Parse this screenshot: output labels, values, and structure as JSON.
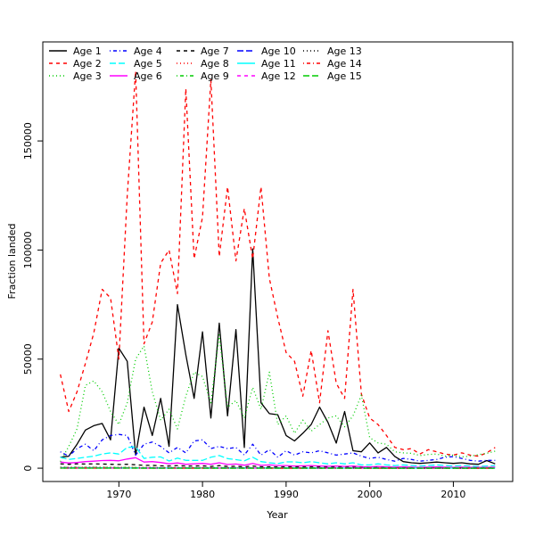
{
  "figure": {
    "background": "#ffffff",
    "plot_background": "#ffffff",
    "box_color": "#000000"
  },
  "axes": {
    "xlabel": "Year",
    "ylabel": "Fraction landed",
    "x_ticks": [
      1970,
      1980,
      1990,
      2000,
      2010
    ],
    "x_tick_labels": [
      "1970",
      "1980",
      "1990",
      "2000",
      "2010"
    ],
    "y_ticks": [
      0,
      50000,
      100000,
      150000
    ],
    "y_tick_labels": [
      "0",
      "50000",
      "100000",
      "150000"
    ],
    "xlim": [
      1960.9,
      2017.1
    ],
    "ylim": [
      -6100,
      195400
    ],
    "grid": false,
    "box": true
  },
  "chart_data": {
    "type": "line",
    "title": "",
    "xlabel": "Year",
    "ylabel": "Fraction landed",
    "legend_position": "top-left",
    "legend_columns": 5,
    "x": [
      1963,
      1964,
      1965,
      1966,
      1967,
      1968,
      1969,
      1970,
      1971,
      1972,
      1973,
      1974,
      1975,
      1976,
      1977,
      1978,
      1979,
      1980,
      1981,
      1982,
      1983,
      1984,
      1985,
      1986,
      1987,
      1988,
      1989,
      1990,
      1991,
      1992,
      1993,
      1994,
      1995,
      1996,
      1997,
      1998,
      1999,
      2000,
      2001,
      2002,
      2003,
      2004,
      2005,
      2006,
      2007,
      2008,
      2009,
      2010,
      2011,
      2012,
      2013,
      2014,
      2015
    ],
    "series": [
      {
        "name": "Age 1",
        "color": "#000000",
        "linetype": "solid",
        "values": [
          5000,
          5500,
          11000,
          17500,
          19500,
          20500,
          13000,
          55000,
          49000,
          6000,
          28000,
          15000,
          32000,
          10000,
          75000,
          52000,
          32000,
          62500,
          23000,
          66500,
          24000,
          63500,
          9500,
          100500,
          30000,
          25000,
          24500,
          15000,
          12500,
          16000,
          20000,
          28000,
          21000,
          11500,
          26000,
          8000,
          7500,
          11600,
          7000,
          9500,
          5400,
          3000,
          2500,
          2200,
          2500,
          2800,
          2500,
          2200,
          2500,
          2000,
          1800,
          3500,
          2000
        ]
      },
      {
        "name": "Age 2",
        "color": "#ff0000",
        "linetype": "dashed",
        "values": [
          43000,
          26000,
          35000,
          48000,
          62000,
          82000,
          78000,
          50000,
          125000,
          182000,
          57000,
          67000,
          94000,
          100000,
          80000,
          174000,
          96000,
          115000,
          178000,
          97000,
          129000,
          95000,
          119000,
          96000,
          129000,
          87000,
          69000,
          53000,
          49000,
          33000,
          54000,
          30000,
          63000,
          39000,
          32000,
          82000,
          34000,
          23000,
          20000,
          15000,
          9500,
          8500,
          9000,
          6500,
          8500,
          7500,
          6500,
          6000,
          7000,
          6000,
          5500,
          7000,
          9500
        ]
      },
      {
        "name": "Age 3",
        "color": "#00cc00",
        "linetype": "dotted",
        "values": [
          3000,
          10000,
          18000,
          38000,
          40000,
          35000,
          26000,
          20000,
          30000,
          50000,
          56000,
          35000,
          22000,
          27000,
          18000,
          33000,
          44000,
          42000,
          30000,
          61000,
          28000,
          31000,
          23000,
          37000,
          27000,
          44000,
          20000,
          24000,
          16000,
          22000,
          17000,
          20000,
          23000,
          24000,
          19000,
          24000,
          33500,
          14000,
          11600,
          11000,
          7500,
          7000,
          6800,
          5800,
          6300,
          6500,
          5500,
          6000,
          5200,
          5500,
          6200,
          6800,
          7800
        ]
      },
      {
        "name": "Age 4",
        "color": "#0000ff",
        "linetype": "dotdash",
        "values": [
          7500,
          5500,
          9000,
          11000,
          8000,
          13000,
          15000,
          15500,
          15000,
          6000,
          11000,
          12000,
          10000,
          7000,
          9500,
          7000,
          12500,
          13000,
          9000,
          10000,
          9000,
          9500,
          6000,
          11000,
          6000,
          8500,
          5000,
          8000,
          6000,
          7500,
          7000,
          8000,
          7000,
          6000,
          6500,
          7000,
          5500,
          4500,
          5000,
          4000,
          3200,
          4500,
          4000,
          3200,
          3600,
          4000,
          5000,
          5300,
          4500,
          3600,
          3200,
          3600,
          3600
        ]
      },
      {
        "name": "Age 5",
        "color": "#00ffff",
        "linetype": "longdash",
        "values": [
          5000,
          4000,
          4500,
          5000,
          5500,
          6500,
          7000,
          6500,
          9500,
          9800,
          4500,
          5000,
          5200,
          3300,
          4600,
          3600,
          3600,
          3600,
          5000,
          5800,
          4400,
          3900,
          3400,
          5000,
          3000,
          2500,
          2100,
          2900,
          2900,
          2500,
          3000,
          2500,
          2000,
          2500,
          2000,
          2500,
          1500,
          1500,
          2000,
          1500,
          1200,
          1500,
          1200,
          1000,
          1200,
          1500,
          1200,
          1000,
          1200,
          1000,
          800,
          1000,
          1200
        ]
      },
      {
        "name": "Age 6",
        "color": "#ff00ff",
        "linetype": "solid",
        "values": [
          2800,
          2400,
          2600,
          3000,
          3200,
          3500,
          3600,
          3400,
          4200,
          4800,
          2800,
          3000,
          2600,
          2000,
          2400,
          1800,
          2000,
          2200,
          1800,
          2500,
          1700,
          1900,
          1400,
          2200,
          1300,
          1500,
          1200,
          1200,
          1000,
          1100,
          1200,
          1000,
          900,
          1000,
          800,
          1000,
          700,
          600,
          800,
          600,
          500,
          600,
          500,
          400,
          500,
          600,
          500,
          400,
          500,
          400,
          350,
          400,
          500
        ]
      },
      {
        "name": "Age 7",
        "color": "#000000",
        "linetype": "dashed",
        "values": [
          2000,
          1800,
          2000,
          1900,
          2000,
          1900,
          1800,
          1700,
          1800,
          1600,
          1300,
          1300,
          1100,
          1000,
          1200,
          1000,
          1000,
          1100,
          800,
          1200,
          800,
          900,
          650,
          1000,
          650,
          650,
          520,
          620,
          520,
          520,
          560,
          520,
          450,
          500,
          380,
          430,
          310,
          250,
          300,
          250,
          200,
          250,
          200,
          180,
          200,
          220,
          200,
          180,
          200,
          170,
          150,
          170,
          200
        ]
      },
      {
        "name": "Age 8",
        "color": "#ff0000",
        "linetype": "dotted",
        "values": [
          500,
          450,
          500,
          480,
          500,
          470,
          450,
          420,
          450,
          400,
          350,
          350,
          320,
          300,
          350,
          300,
          280,
          300,
          260,
          320,
          250,
          270,
          220,
          300,
          220,
          220,
          190,
          210,
          180,
          180,
          190,
          180,
          160,
          170,
          140,
          150,
          120,
          110,
          130,
          110,
          90,
          100,
          90,
          80,
          90,
          95,
          85,
          80,
          85,
          75,
          70,
          80,
          90
        ]
      },
      {
        "name": "Age 9",
        "color": "#00cc00",
        "linetype": "dotdash",
        "values": [
          350,
          320,
          340,
          330,
          340,
          320,
          310,
          290,
          310,
          280,
          250,
          240,
          220,
          210,
          240,
          210,
          200,
          210,
          180,
          220,
          175,
          185,
          155,
          200,
          150,
          150,
          130,
          140,
          120,
          125,
          130,
          120,
          110,
          115,
          100,
          105,
          85,
          80,
          90,
          75,
          65,
          70,
          62,
          58,
          62,
          65,
          58,
          55,
          58,
          52,
          48,
          55,
          60
        ]
      },
      {
        "name": "Age 10",
        "color": "#0000ff",
        "linetype": "longdash",
        "values": [
          220,
          200,
          215,
          210,
          215,
          200,
          195,
          185,
          195,
          175,
          160,
          150,
          140,
          135,
          150,
          132,
          126,
          132,
          115,
          140,
          110,
          117,
          98,
          126,
          95,
          95,
          82,
          88,
          76,
          79,
          82,
          76,
          70,
          72,
          63,
          66,
          54,
          50,
          57,
          48,
          41,
          44,
          39,
          37,
          39,
          41,
          37,
          35,
          37,
          33,
          30,
          35,
          38
        ]
      },
      {
        "name": "Age 11",
        "color": "#00ffff",
        "linetype": "solid",
        "values": [
          130,
          118,
          127,
          124,
          127,
          118,
          115,
          109,
          115,
          103,
          94,
          89,
          83,
          80,
          89,
          78,
          74,
          78,
          68,
          82,
          65,
          69,
          58,
          74,
          56,
          56,
          48,
          52,
          45,
          47,
          48,
          45,
          41,
          42,
          37,
          39,
          32,
          30,
          34,
          28,
          24,
          26,
          23,
          22,
          23,
          24,
          22,
          21,
          22,
          20,
          18,
          21,
          22
        ]
      },
      {
        "name": "Age 12",
        "color": "#ff00ff",
        "linetype": "dashed",
        "values": [
          75,
          68,
          73,
          71,
          73,
          68,
          66,
          63,
          66,
          59,
          54,
          51,
          48,
          46,
          51,
          45,
          43,
          45,
          39,
          47,
          38,
          40,
          33,
          43,
          32,
          32,
          28,
          30,
          26,
          27,
          28,
          26,
          24,
          24,
          21,
          22,
          19,
          17,
          20,
          16,
          14,
          15,
          13,
          13,
          13,
          14,
          13,
          12,
          13,
          12,
          11,
          12,
          13
        ]
      },
      {
        "name": "Age 13",
        "color": "#000000",
        "linetype": "dotted",
        "values": [
          44,
          40,
          42,
          41,
          42,
          40,
          38,
          37,
          38,
          34,
          31,
          30,
          28,
          27,
          30,
          26,
          25,
          26,
          23,
          27,
          22,
          23,
          19,
          25,
          19,
          19,
          16,
          17,
          15,
          16,
          16,
          15,
          14,
          14,
          12,
          13,
          11,
          10,
          12,
          9,
          8,
          9,
          8,
          7,
          8,
          8,
          8,
          7,
          8,
          7,
          6,
          7,
          8
        ]
      },
      {
        "name": "Age 14",
        "color": "#ff0000",
        "linetype": "dotdash",
        "values": [
          25,
          23,
          24,
          23,
          24,
          23,
          22,
          21,
          22,
          20,
          18,
          17,
          16,
          15,
          17,
          15,
          14,
          15,
          13,
          15,
          13,
          13,
          11,
          14,
          11,
          11,
          9,
          10,
          9,
          9,
          9,
          9,
          8,
          8,
          7,
          7,
          6,
          6,
          7,
          5,
          5,
          5,
          5,
          4,
          5,
          5,
          5,
          4,
          5,
          4,
          4,
          4,
          5
        ]
      },
      {
        "name": "Age 15",
        "color": "#00cc00",
        "linetype": "longdash",
        "values": [
          14,
          13,
          13,
          13,
          13,
          13,
          12,
          12,
          12,
          11,
          10,
          10,
          9,
          9,
          10,
          8,
          8,
          8,
          7,
          9,
          7,
          7,
          6,
          8,
          6,
          6,
          5,
          6,
          5,
          5,
          5,
          5,
          4,
          4,
          4,
          4,
          3,
          3,
          4,
          3,
          3,
          3,
          3,
          2,
          3,
          3,
          3,
          2,
          3,
          2,
          2,
          2,
          3
        ]
      }
    ]
  }
}
